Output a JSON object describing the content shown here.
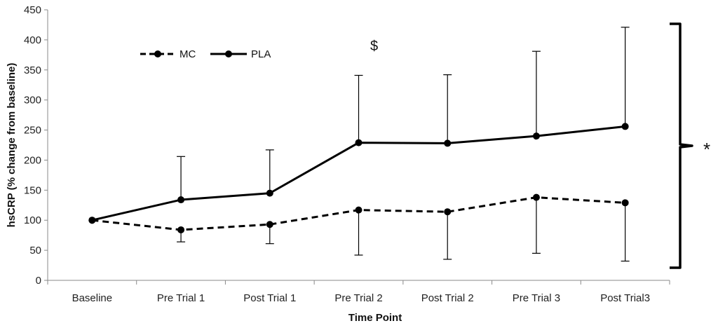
{
  "chart_data": {
    "type": "line",
    "title": "",
    "xlabel": "Time Point",
    "ylabel": "hsCRP (% change from baseline)",
    "ylim": [
      0,
      450
    ],
    "yticks": [
      0,
      50,
      100,
      150,
      200,
      250,
      300,
      350,
      400,
      450
    ],
    "grid": false,
    "legend_placement": "top-left",
    "categories": [
      "Baseline",
      "Pre Trial 1",
      "Post Trial 1",
      "Pre Trial 2",
      "Post Trial 2",
      "Pre Trial 3",
      "Post Trial3"
    ],
    "series": [
      {
        "name": "MC",
        "line_style": "dashed",
        "color": "#000000",
        "values": [
          100,
          84,
          93,
          117,
          114,
          138,
          129
        ],
        "error_lower": [
          null,
          64,
          61,
          42,
          35,
          45,
          32
        ],
        "error_upper": [
          null,
          null,
          null,
          null,
          null,
          null,
          null
        ]
      },
      {
        "name": "PLA",
        "line_style": "solid",
        "color": "#000000",
        "values": [
          100,
          134,
          145,
          229,
          228,
          240,
          256
        ],
        "error_lower": [
          null,
          null,
          null,
          null,
          null,
          null,
          null
        ],
        "error_upper": [
          null,
          206,
          217,
          341,
          342,
          381,
          421
        ]
      }
    ],
    "annotations": {
      "dollar": "$",
      "asterisk": "*"
    }
  }
}
